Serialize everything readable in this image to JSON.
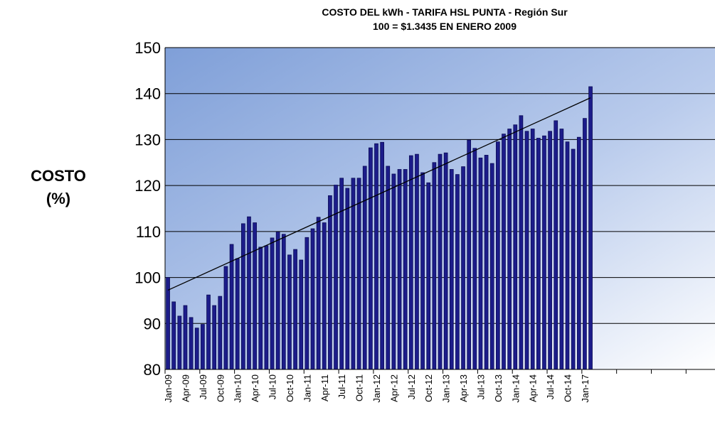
{
  "chart_data": {
    "type": "bar",
    "title": "COSTO DEL kWh - TARIFA HSL PUNTA - Región Sur",
    "subtitle": "100 = $1.3435 EN ENERO 2009",
    "y_label": [
      "COSTO",
      "(%)"
    ],
    "categories": [
      "Jan-09",
      null,
      null,
      "Apr-09",
      null,
      null,
      "Jul-09",
      null,
      null,
      "Oct-09",
      null,
      null,
      "Jan-10",
      null,
      null,
      "Apr-10",
      null,
      null,
      "Jul-10",
      null,
      null,
      "Oct-10",
      null,
      null,
      "Jan-11",
      null,
      null,
      "Apr-11",
      null,
      null,
      "Jul-11",
      null,
      null,
      "Oct-11",
      null,
      null,
      "Jan-12",
      null,
      null,
      "Apr-12",
      null,
      null,
      "Jul-12",
      null,
      null,
      "Oct-12",
      null,
      null,
      "Jan-13",
      null,
      null,
      "Apr-13",
      null,
      null,
      "Jul-13",
      null,
      null,
      "Oct-13",
      null,
      null,
      "Jan-14",
      null,
      null,
      "Apr-14",
      null,
      null,
      "Jul-14",
      null,
      null,
      "Oct-14",
      null,
      null,
      "Jan-17",
      null,
      null,
      null,
      null,
      null,
      null,
      null,
      null,
      null,
      null,
      null,
      null,
      null,
      null,
      null,
      null,
      null,
      null,
      null,
      null,
      null,
      null
    ],
    "values": [
      100,
      94.7,
      91.6,
      93.9,
      91.3,
      89,
      89.8,
      96.2,
      93.9,
      95.9,
      102.4,
      107.2,
      104.1,
      111.7,
      113.2,
      111.9,
      106.6,
      106.9,
      108.6,
      109.9,
      109.4,
      104.9,
      106.1,
      103.8,
      108.7,
      110.6,
      113.1,
      111.9,
      117.8,
      120.1,
      121.6,
      119.4,
      121.6,
      121.6,
      124.2,
      128.2,
      129.1,
      129.4,
      124.2,
      122.5,
      123.5,
      123.5,
      126.5,
      126.8,
      122.8,
      120.6,
      125,
      126.8,
      127.1,
      123.5,
      122.4,
      124.1,
      129.9,
      128.1,
      126,
      126.6,
      124.8,
      129.5,
      131.2,
      132.3,
      133.2,
      135.2,
      131.8,
      132.3,
      130.3,
      130.8,
      131.8,
      134.1,
      132.3,
      129.5,
      127.9,
      130.5,
      134.6,
      141.5,
      null,
      null,
      null,
      null,
      null,
      null,
      null,
      null,
      null,
      null,
      null,
      null,
      null,
      null,
      null,
      null,
      null,
      null,
      null,
      null,
      null
    ],
    "color": "#1c1c8a",
    "ylim": [
      80,
      150
    ],
    "yticks": [
      80,
      90,
      100,
      110,
      120,
      130,
      140,
      150
    ],
    "grid": true,
    "trendline": true
  }
}
